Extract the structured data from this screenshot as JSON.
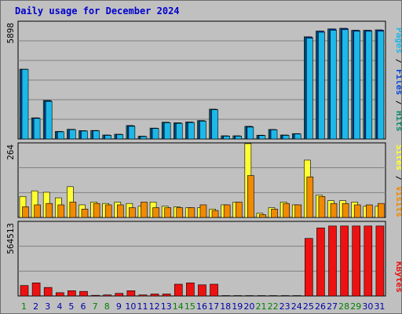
{
  "title": "Daily usage for December 2024",
  "colors": {
    "background": "#c0c0c0",
    "plot": "#c0c0c0",
    "grid": "#808080",
    "hits": "#0a8a6e",
    "pages": "#1cb8e8",
    "files": "#0044dd",
    "visits": "#f08a00",
    "sites": "#ffff33",
    "kbytes": "#ee1111",
    "weekday": "#0000aa",
    "weekend": "#008000"
  },
  "chart_data": [
    {
      "type": "bar",
      "name_top": "5898",
      "ylabel_parts": [
        {
          "text": "Pages",
          "color": "#1cb8e8"
        },
        {
          "text": " / ",
          "color": "#000000"
        },
        {
          "text": "Files",
          "color": "#0044dd"
        },
        {
          "text": " / ",
          "color": "#000000"
        },
        {
          "text": "Hits",
          "color": "#0a8a6e"
        }
      ],
      "ylim": [
        0,
        5898
      ],
      "series": [
        {
          "name": "Hits",
          "values": [
            3530,
            1070,
            1950,
            380,
            490,
            420,
            430,
            200,
            240,
            680,
            140,
            550,
            850,
            820,
            860,
            930,
            1510,
            160,
            160,
            640,
            190,
            480,
            200,
            270,
            5170,
            5460,
            5570,
            5600,
            5500,
            5500,
            5520
          ]
        },
        {
          "name": "Files",
          "values": [
            3530,
            1060,
            1930,
            370,
            480,
            410,
            420,
            190,
            230,
            660,
            130,
            540,
            830,
            800,
            840,
            910,
            1490,
            150,
            150,
            620,
            180,
            470,
            190,
            260,
            5160,
            5450,
            5560,
            5590,
            5490,
            5490,
            5510
          ]
        },
        {
          "name": "Pages",
          "values": [
            3520,
            1040,
            1900,
            360,
            470,
            400,
            410,
            180,
            220,
            640,
            120,
            530,
            820,
            790,
            830,
            900,
            1480,
            140,
            140,
            600,
            170,
            460,
            180,
            250,
            5100,
            5400,
            5500,
            5530,
            5450,
            5450,
            5450
          ]
        }
      ]
    },
    {
      "type": "bar",
      "name_top": "264",
      "ylabel_parts": [
        {
          "text": "Sites",
          "color": "#ffff33"
        },
        {
          "text": " / ",
          "color": "#000000"
        },
        {
          "text": "Visits",
          "color": "#f08a00"
        }
      ],
      "ylim": [
        0,
        264
      ],
      "series": [
        {
          "name": "Sites",
          "values": [
            75,
            95,
            90,
            70,
            110,
            45,
            55,
            50,
            55,
            50,
            40,
            55,
            40,
            38,
            35,
            35,
            30,
            45,
            55,
            264,
            15,
            35,
            55,
            45,
            205,
            80,
            60,
            60,
            55,
            40,
            40
          ]
        },
        {
          "name": "Visits",
          "values": [
            38,
            45,
            50,
            45,
            55,
            30,
            50,
            45,
            45,
            35,
            55,
            35,
            35,
            35,
            35,
            45,
            25,
            45,
            55,
            150,
            10,
            30,
            50,
            45,
            145,
            75,
            50,
            50,
            45,
            45,
            50
          ]
        }
      ]
    },
    {
      "type": "bar",
      "name_top": "564513",
      "ylabel_parts": [
        {
          "text": "KBytes",
          "color": "#ee1111"
        }
      ],
      "ylim": [
        0,
        564513
      ],
      "series": [
        {
          "name": "KBytes",
          "values": [
            80000,
            100000,
            65000,
            25000,
            40000,
            35000,
            5000,
            8000,
            20000,
            40000,
            8000,
            15000,
            15000,
            90000,
            100000,
            85000,
            90000,
            3000,
            3000,
            3000,
            3000,
            3000,
            3000,
            3000,
            440000,
            520000,
            535000,
            535000,
            535000,
            535000,
            535000
          ]
        }
      ]
    }
  ],
  "days": [
    "1",
    "2",
    "3",
    "4",
    "5",
    "6",
    "7",
    "8",
    "9",
    "10",
    "11",
    "12",
    "13",
    "14",
    "15",
    "16",
    "17",
    "18",
    "19",
    "20",
    "21",
    "22",
    "23",
    "24",
    "25",
    "26",
    "27",
    "28",
    "29",
    "30",
    "31"
  ],
  "weekend_days": [
    1,
    7,
    8,
    14,
    15,
    21,
    22,
    28,
    29
  ]
}
